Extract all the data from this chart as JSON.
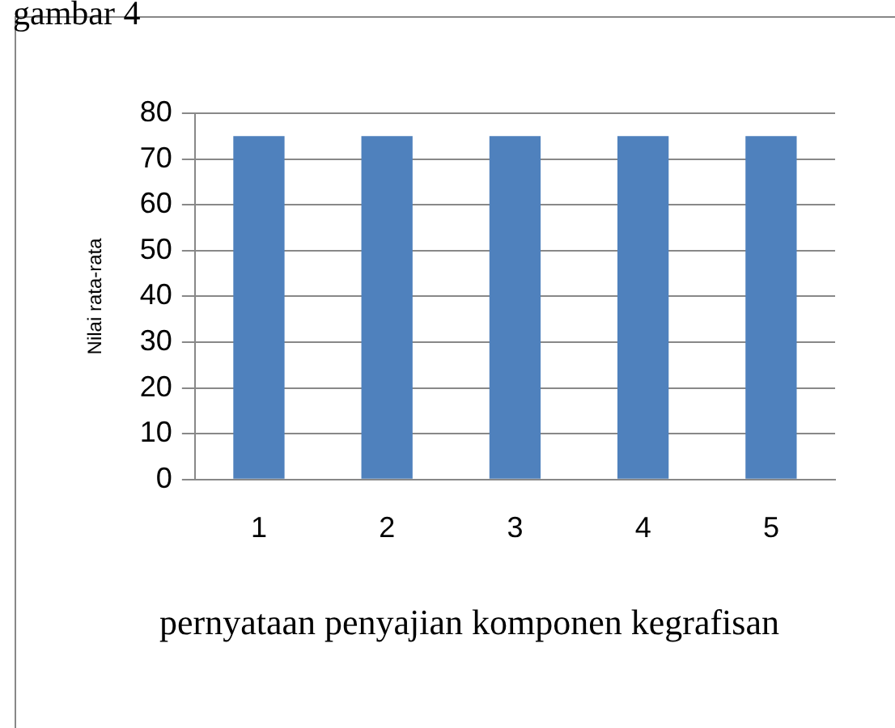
{
  "chart_data": {
    "type": "bar",
    "categories": [
      "1",
      "2",
      "3",
      "4",
      "5"
    ],
    "values": [
      75,
      75,
      75,
      75,
      75
    ],
    "color": "#4f81bd",
    "ylim": [
      0,
      80
    ],
    "yticks": [
      0,
      10,
      20,
      30,
      40,
      50,
      60,
      70,
      80
    ],
    "grid": "y",
    "ylabel": "Nilai rata-rata",
    "xlabel": "pernyataan penyajian komponen kegrafisan",
    "annotations": [
      "gambar 4"
    ]
  }
}
